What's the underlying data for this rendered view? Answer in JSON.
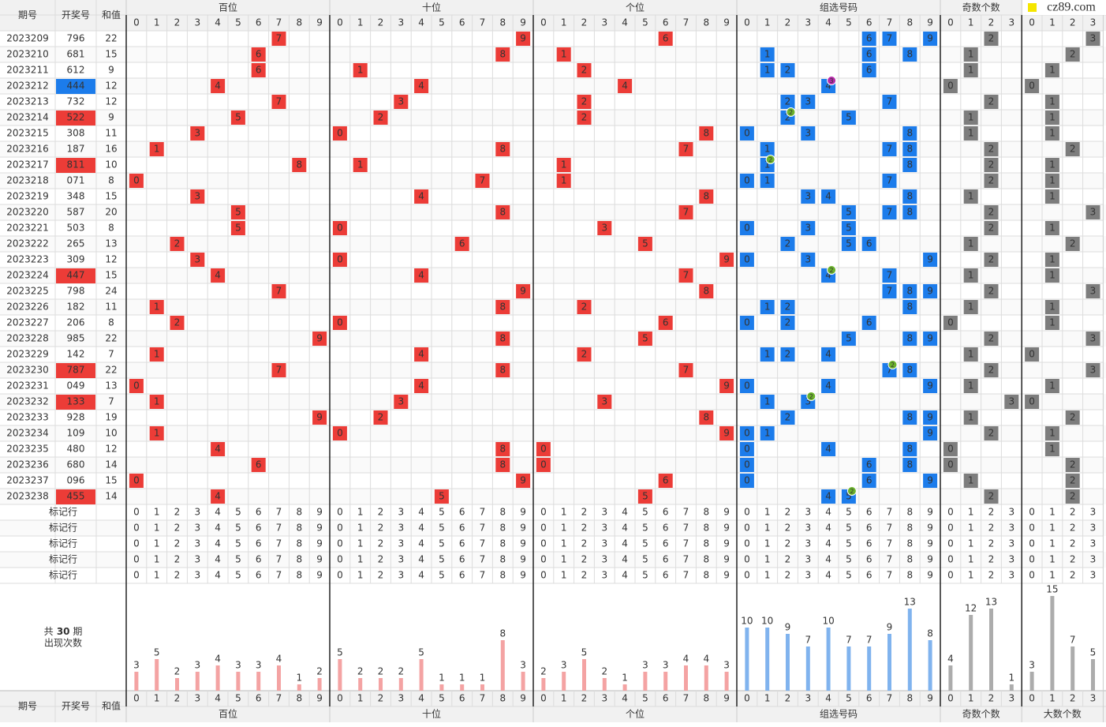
{
  "logo": "cz89.com",
  "columns": {
    "issue": "期号",
    "number": "开奖号",
    "sum": "和值"
  },
  "sections": [
    "百位",
    "十位",
    "个位",
    "组选号码",
    "奇数个数",
    "大数个数"
  ],
  "digits": [
    0,
    1,
    2,
    3,
    4,
    5,
    6,
    7,
    8,
    9
  ],
  "marker_label": "标记行",
  "rows": [
    {
      "issue": "2023209",
      "number": "796",
      "sum": 22,
      "hundreds": 7,
      "tens": 9,
      "units": 6,
      "group": [
        6,
        7,
        9
      ],
      "odd": 2,
      "big": 3
    },
    {
      "issue": "2023210",
      "number": "681",
      "sum": 15,
      "hundreds": 6,
      "tens": 8,
      "units": 1,
      "group": [
        1,
        6,
        8
      ],
      "odd": 1,
      "big": 2
    },
    {
      "issue": "2023211",
      "number": "612",
      "sum": 9,
      "hundreds": 6,
      "tens": 1,
      "units": 2,
      "group": [
        1,
        2,
        6
      ],
      "odd": 1,
      "big": 1
    },
    {
      "issue": "2023212",
      "number": "444",
      "sum": 12,
      "hundreds": 4,
      "tens": 4,
      "units": 4,
      "group": [
        4
      ],
      "repeat": {
        "digit": 4,
        "times": 3
      },
      "odd": 0,
      "big": 0
    },
    {
      "issue": "2023213",
      "number": "732",
      "sum": 12,
      "hundreds": 7,
      "tens": 3,
      "units": 2,
      "group": [
        2,
        3,
        7
      ],
      "odd": 2,
      "big": 1
    },
    {
      "issue": "2023214",
      "number": "522",
      "sum": 9,
      "hundreds": 5,
      "tens": 2,
      "units": 2,
      "group": [
        2,
        5
      ],
      "repeat": {
        "digit": 2,
        "times": 2
      },
      "odd": 1,
      "big": 1
    },
    {
      "issue": "2023215",
      "number": "308",
      "sum": 11,
      "hundreds": 3,
      "tens": 0,
      "units": 8,
      "group": [
        0,
        3,
        8
      ],
      "odd": 1,
      "big": 1
    },
    {
      "issue": "2023216",
      "number": "187",
      "sum": 16,
      "hundreds": 1,
      "tens": 8,
      "units": 7,
      "group": [
        1,
        7,
        8
      ],
      "odd": 2,
      "big": 2
    },
    {
      "issue": "2023217",
      "number": "811",
      "sum": 10,
      "hundreds": 8,
      "tens": 1,
      "units": 1,
      "group": [
        1,
        8
      ],
      "repeat": {
        "digit": 1,
        "times": 2
      },
      "odd": 2,
      "big": 1
    },
    {
      "issue": "2023218",
      "number": "071",
      "sum": 8,
      "hundreds": 0,
      "tens": 7,
      "units": 1,
      "group": [
        0,
        1,
        7
      ],
      "odd": 2,
      "big": 1
    },
    {
      "issue": "2023219",
      "number": "348",
      "sum": 15,
      "hundreds": 3,
      "tens": 4,
      "units": 8,
      "group": [
        3,
        4,
        8
      ],
      "odd": 1,
      "big": 1
    },
    {
      "issue": "2023220",
      "number": "587",
      "sum": 20,
      "hundreds": 5,
      "tens": 8,
      "units": 7,
      "group": [
        5,
        7,
        8
      ],
      "odd": 2,
      "big": 3
    },
    {
      "issue": "2023221",
      "number": "503",
      "sum": 8,
      "hundreds": 5,
      "tens": 0,
      "units": 3,
      "group": [
        0,
        3,
        5
      ],
      "odd": 2,
      "big": 1
    },
    {
      "issue": "2023222",
      "number": "265",
      "sum": 13,
      "hundreds": 2,
      "tens": 6,
      "units": 5,
      "group": [
        2,
        5,
        6
      ],
      "odd": 1,
      "big": 2
    },
    {
      "issue": "2023223",
      "number": "309",
      "sum": 12,
      "hundreds": 3,
      "tens": 0,
      "units": 9,
      "group": [
        0,
        3,
        9
      ],
      "odd": 2,
      "big": 1
    },
    {
      "issue": "2023224",
      "number": "447",
      "sum": 15,
      "hundreds": 4,
      "tens": 4,
      "units": 7,
      "group": [
        4,
        7
      ],
      "repeat": {
        "digit": 4,
        "times": 2
      },
      "odd": 1,
      "big": 1
    },
    {
      "issue": "2023225",
      "number": "798",
      "sum": 24,
      "hundreds": 7,
      "tens": 9,
      "units": 8,
      "group": [
        7,
        8,
        9
      ],
      "odd": 2,
      "big": 3
    },
    {
      "issue": "2023226",
      "number": "182",
      "sum": 11,
      "hundreds": 1,
      "tens": 8,
      "units": 2,
      "group": [
        1,
        2,
        8
      ],
      "odd": 1,
      "big": 1
    },
    {
      "issue": "2023227",
      "number": "206",
      "sum": 8,
      "hundreds": 2,
      "tens": 0,
      "units": 6,
      "group": [
        0,
        2,
        6
      ],
      "odd": 0,
      "big": 1
    },
    {
      "issue": "2023228",
      "number": "985",
      "sum": 22,
      "hundreds": 9,
      "tens": 8,
      "units": 5,
      "group": [
        5,
        8,
        9
      ],
      "odd": 2,
      "big": 3
    },
    {
      "issue": "2023229",
      "number": "142",
      "sum": 7,
      "hundreds": 1,
      "tens": 4,
      "units": 2,
      "group": [
        1,
        2,
        4
      ],
      "odd": 1,
      "big": 0
    },
    {
      "issue": "2023230",
      "number": "787",
      "sum": 22,
      "hundreds": 7,
      "tens": 8,
      "units": 7,
      "group": [
        7,
        8
      ],
      "repeat": {
        "digit": 7,
        "times": 2
      },
      "odd": 2,
      "big": 3
    },
    {
      "issue": "2023231",
      "number": "049",
      "sum": 13,
      "hundreds": 0,
      "tens": 4,
      "units": 9,
      "group": [
        0,
        4,
        9
      ],
      "odd": 1,
      "big": 1
    },
    {
      "issue": "2023232",
      "number": "133",
      "sum": 7,
      "hundreds": 1,
      "tens": 3,
      "units": 3,
      "group": [
        1,
        3
      ],
      "repeat": {
        "digit": 3,
        "times": 2
      },
      "odd": 3,
      "big": 0
    },
    {
      "issue": "2023233",
      "number": "928",
      "sum": 19,
      "hundreds": 9,
      "tens": 2,
      "units": 8,
      "group": [
        2,
        8,
        9
      ],
      "odd": 1,
      "big": 2
    },
    {
      "issue": "2023234",
      "number": "109",
      "sum": 10,
      "hundreds": 1,
      "tens": 0,
      "units": 9,
      "group": [
        0,
        1,
        9
      ],
      "odd": 2,
      "big": 1
    },
    {
      "issue": "2023235",
      "number": "480",
      "sum": 12,
      "hundreds": 4,
      "tens": 8,
      "units": 0,
      "group": [
        0,
        4,
        8
      ],
      "odd": 0,
      "big": 1
    },
    {
      "issue": "2023236",
      "number": "680",
      "sum": 14,
      "hundreds": 6,
      "tens": 8,
      "units": 0,
      "group": [
        0,
        6,
        8
      ],
      "odd": 0,
      "big": 2
    },
    {
      "issue": "2023237",
      "number": "096",
      "sum": 15,
      "hundreds": 0,
      "tens": 9,
      "units": 6,
      "group": [
        0,
        6,
        9
      ],
      "odd": 1,
      "big": 2
    },
    {
      "issue": "2023238",
      "number": "455",
      "sum": 14,
      "hundreds": 4,
      "tens": 5,
      "units": 5,
      "group": [
        4,
        5
      ],
      "repeat": {
        "digit": 5,
        "times": 2
      },
      "odd": 2,
      "big": 2
    }
  ],
  "stats": {
    "prefix": "共",
    "periods": 30,
    "suffix": "期",
    "label": "出现次数",
    "counts": {
      "hundreds": [
        3,
        5,
        2,
        3,
        4,
        3,
        3,
        4,
        1,
        2
      ],
      "tens": [
        5,
        2,
        2,
        2,
        5,
        1,
        1,
        1,
        8,
        3
      ],
      "units": [
        2,
        3,
        5,
        2,
        1,
        3,
        3,
        4,
        4,
        3
      ],
      "group": [
        10,
        10,
        9,
        7,
        10,
        7,
        7,
        9,
        13,
        8
      ],
      "odd": [
        4,
        12,
        13,
        1
      ],
      "big": [
        3,
        15,
        7,
        5
      ]
    }
  }
}
